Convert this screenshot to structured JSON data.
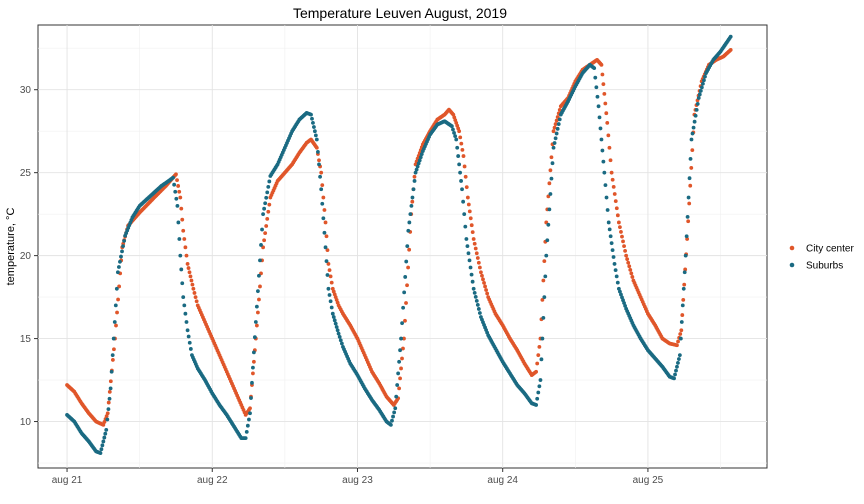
{
  "chart_data": {
    "type": "scatter",
    "title": "Temperature Leuven August, 2019",
    "xlabel": "",
    "ylabel": "temperature, °C",
    "x_unit": "days",
    "x_ticks": [
      {
        "value": 0,
        "label": "aug 21"
      },
      {
        "value": 1,
        "label": "aug 22"
      },
      {
        "value": 2,
        "label": "aug 23"
      },
      {
        "value": 3,
        "label": "aug 24"
      },
      {
        "value": 4,
        "label": "aug 25"
      }
    ],
    "y_ticks": [
      10,
      15,
      20,
      25,
      30
    ],
    "xlim": [
      -0.2,
      4.82
    ],
    "ylim": [
      7.2,
      33.9
    ],
    "grid": true,
    "legend_position": "right",
    "colors": {
      "city": "#e0562a",
      "suburbs": "#1a6a82"
    },
    "series": [
      {
        "name": "City center",
        "color": "#e0562a",
        "points": [
          [
            0.0,
            12.2
          ],
          [
            0.05,
            11.8
          ],
          [
            0.1,
            11.1
          ],
          [
            0.15,
            10.5
          ],
          [
            0.2,
            10.0
          ],
          [
            0.25,
            9.8
          ],
          [
            0.28,
            10.5
          ],
          [
            0.33,
            15.0
          ],
          [
            0.38,
            20.5
          ],
          [
            0.42,
            21.8
          ],
          [
            0.5,
            22.6
          ],
          [
            0.6,
            23.5
          ],
          [
            0.68,
            24.2
          ],
          [
            0.72,
            24.6
          ],
          [
            0.75,
            24.9
          ],
          [
            0.78,
            23.5
          ],
          [
            0.8,
            21.5
          ],
          [
            0.83,
            19.5
          ],
          [
            0.87,
            18.0
          ],
          [
            0.9,
            17.0
          ],
          [
            0.95,
            16.0
          ],
          [
            1.0,
            15.0
          ],
          [
            1.05,
            14.0
          ],
          [
            1.1,
            13.0
          ],
          [
            1.15,
            12.0
          ],
          [
            1.2,
            11.0
          ],
          [
            1.23,
            10.4
          ],
          [
            1.26,
            10.8
          ],
          [
            1.3,
            15.0
          ],
          [
            1.35,
            20.5
          ],
          [
            1.4,
            23.5
          ],
          [
            1.45,
            24.5
          ],
          [
            1.5,
            25.0
          ],
          [
            1.55,
            25.5
          ],
          [
            1.6,
            26.2
          ],
          [
            1.65,
            26.8
          ],
          [
            1.68,
            27.0
          ],
          [
            1.72,
            26.5
          ],
          [
            1.75,
            25.0
          ],
          [
            1.78,
            22.0
          ],
          [
            1.8,
            19.5
          ],
          [
            1.83,
            18.0
          ],
          [
            1.87,
            17.0
          ],
          [
            1.9,
            16.5
          ],
          [
            1.95,
            15.8
          ],
          [
            2.0,
            15.0
          ],
          [
            2.05,
            14.0
          ],
          [
            2.1,
            13.0
          ],
          [
            2.15,
            12.3
          ],
          [
            2.2,
            11.5
          ],
          [
            2.25,
            11.0
          ],
          [
            2.28,
            11.4
          ],
          [
            2.32,
            15.0
          ],
          [
            2.37,
            22.5
          ],
          [
            2.4,
            25.5
          ],
          [
            2.45,
            26.7
          ],
          [
            2.5,
            27.5
          ],
          [
            2.55,
            28.2
          ],
          [
            2.6,
            28.5
          ],
          [
            2.63,
            28.8
          ],
          [
            2.66,
            28.5
          ],
          [
            2.7,
            27.5
          ],
          [
            2.73,
            26.0
          ],
          [
            2.76,
            23.5
          ],
          [
            2.8,
            21.0
          ],
          [
            2.85,
            19.0
          ],
          [
            2.9,
            17.5
          ],
          [
            2.95,
            16.5
          ],
          [
            3.0,
            15.8
          ],
          [
            3.05,
            15.0
          ],
          [
            3.1,
            14.3
          ],
          [
            3.15,
            13.5
          ],
          [
            3.2,
            12.8
          ],
          [
            3.23,
            13.0
          ],
          [
            3.26,
            15.0
          ],
          [
            3.3,
            22.0
          ],
          [
            3.35,
            27.5
          ],
          [
            3.4,
            29.0
          ],
          [
            3.45,
            29.5
          ],
          [
            3.5,
            30.5
          ],
          [
            3.55,
            31.2
          ],
          [
            3.6,
            31.5
          ],
          [
            3.65,
            31.8
          ],
          [
            3.68,
            31.5
          ],
          [
            3.72,
            28.0
          ],
          [
            3.75,
            25.0
          ],
          [
            3.8,
            22.0
          ],
          [
            3.85,
            20.0
          ],
          [
            3.9,
            18.5
          ],
          [
            3.95,
            17.5
          ],
          [
            4.0,
            16.5
          ],
          [
            4.05,
            15.8
          ],
          [
            4.1,
            15.0
          ],
          [
            4.15,
            14.7
          ],
          [
            4.2,
            14.6
          ],
          [
            4.23,
            15.5
          ],
          [
            4.27,
            21.0
          ],
          [
            4.32,
            28.5
          ],
          [
            4.37,
            30.5
          ],
          [
            4.42,
            31.5
          ],
          [
            4.47,
            31.8
          ],
          [
            4.52,
            32.0
          ],
          [
            4.57,
            32.4
          ]
        ]
      },
      {
        "name": "Suburbs",
        "color": "#1a6a82",
        "points": [
          [
            0.0,
            10.4
          ],
          [
            0.05,
            10.0
          ],
          [
            0.1,
            9.3
          ],
          [
            0.15,
            8.8
          ],
          [
            0.2,
            8.2
          ],
          [
            0.23,
            8.1
          ],
          [
            0.27,
            9.5
          ],
          [
            0.3,
            12.0
          ],
          [
            0.35,
            19.0
          ],
          [
            0.4,
            21.2
          ],
          [
            0.45,
            22.3
          ],
          [
            0.5,
            23.0
          ],
          [
            0.6,
            23.8
          ],
          [
            0.65,
            24.2
          ],
          [
            0.7,
            24.5
          ],
          [
            0.73,
            24.7
          ],
          [
            0.76,
            23.0
          ],
          [
            0.78,
            20.0
          ],
          [
            0.8,
            17.5
          ],
          [
            0.83,
            15.5
          ],
          [
            0.86,
            14.0
          ],
          [
            0.9,
            13.2
          ],
          [
            0.95,
            12.5
          ],
          [
            1.0,
            11.7
          ],
          [
            1.05,
            11.0
          ],
          [
            1.1,
            10.4
          ],
          [
            1.15,
            9.7
          ],
          [
            1.2,
            9.0
          ],
          [
            1.23,
            9.0
          ],
          [
            1.26,
            10.5
          ],
          [
            1.3,
            16.0
          ],
          [
            1.35,
            22.5
          ],
          [
            1.4,
            24.8
          ],
          [
            1.45,
            25.5
          ],
          [
            1.5,
            26.5
          ],
          [
            1.55,
            27.5
          ],
          [
            1.6,
            28.2
          ],
          [
            1.65,
            28.6
          ],
          [
            1.68,
            28.5
          ],
          [
            1.72,
            27.0
          ],
          [
            1.75,
            24.0
          ],
          [
            1.78,
            20.5
          ],
          [
            1.8,
            18.0
          ],
          [
            1.83,
            16.5
          ],
          [
            1.87,
            15.3
          ],
          [
            1.9,
            14.5
          ],
          [
            1.95,
            13.5
          ],
          [
            2.0,
            12.8
          ],
          [
            2.05,
            12.0
          ],
          [
            2.1,
            11.3
          ],
          [
            2.15,
            10.7
          ],
          [
            2.2,
            10.0
          ],
          [
            2.23,
            9.8
          ],
          [
            2.26,
            10.8
          ],
          [
            2.3,
            15.0
          ],
          [
            2.35,
            21.5
          ],
          [
            2.4,
            25.0
          ],
          [
            2.45,
            26.3
          ],
          [
            2.5,
            27.3
          ],
          [
            2.55,
            27.9
          ],
          [
            2.6,
            28.1
          ],
          [
            2.65,
            27.8
          ],
          [
            2.68,
            27.0
          ],
          [
            2.72,
            24.0
          ],
          [
            2.75,
            21.0
          ],
          [
            2.8,
            18.0
          ],
          [
            2.85,
            16.3
          ],
          [
            2.9,
            15.2
          ],
          [
            2.95,
            14.4
          ],
          [
            3.0,
            13.6
          ],
          [
            3.05,
            12.9
          ],
          [
            3.1,
            12.2
          ],
          [
            3.15,
            11.7
          ],
          [
            3.2,
            11.1
          ],
          [
            3.23,
            11.0
          ],
          [
            3.26,
            12.5
          ],
          [
            3.3,
            20.0
          ],
          [
            3.35,
            26.5
          ],
          [
            3.4,
            28.5
          ],
          [
            3.45,
            29.3
          ],
          [
            3.5,
            30.2
          ],
          [
            3.55,
            31.0
          ],
          [
            3.6,
            31.5
          ],
          [
            3.63,
            31.3
          ],
          [
            3.66,
            29.0
          ],
          [
            3.7,
            25.0
          ],
          [
            3.73,
            22.0
          ],
          [
            3.77,
            19.5
          ],
          [
            3.8,
            18.0
          ],
          [
            3.85,
            16.8
          ],
          [
            3.9,
            15.8
          ],
          [
            3.95,
            15.0
          ],
          [
            4.0,
            14.3
          ],
          [
            4.05,
            13.8
          ],
          [
            4.1,
            13.3
          ],
          [
            4.15,
            12.7
          ],
          [
            4.18,
            12.6
          ],
          [
            4.22,
            14.0
          ],
          [
            4.26,
            20.0
          ],
          [
            4.3,
            27.0
          ],
          [
            4.35,
            29.5
          ],
          [
            4.4,
            31.0
          ],
          [
            4.45,
            31.8
          ],
          [
            4.5,
            32.3
          ],
          [
            4.57,
            33.2
          ]
        ]
      }
    ]
  }
}
